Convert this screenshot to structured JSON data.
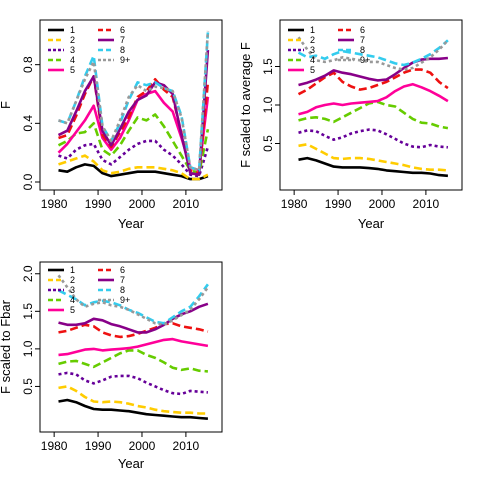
{
  "chart_data": [
    {
      "type": "line",
      "xlabel": "Year",
      "ylabel": "F",
      "xlim": [
        1980,
        2015
      ],
      "ylim": [
        0,
        1.05
      ],
      "xticks": [
        1980,
        1990,
        2000,
        2010
      ],
      "yticks": [
        0.0,
        0.4,
        0.8
      ],
      "ytick_labels": [
        "0.0",
        "0.4",
        "0.8"
      ],
      "legend": "top-left",
      "x": [
        1981,
        1983,
        1985,
        1987,
        1989,
        1991,
        1993,
        1995,
        1997,
        1999,
        2001,
        2003,
        2005,
        2007,
        2009,
        2011,
        2013,
        2015
      ],
      "series": [
        {
          "name": "1",
          "color": "#000000",
          "dash": "",
          "values": [
            0.08,
            0.07,
            0.1,
            0.12,
            0.11,
            0.06,
            0.04,
            0.05,
            0.06,
            0.07,
            0.07,
            0.07,
            0.06,
            0.05,
            0.04,
            0.02,
            0.02,
            0.04
          ]
        },
        {
          "name": "2",
          "color": "#FFCC00",
          "dash": "8,4",
          "values": [
            0.12,
            0.14,
            0.16,
            0.18,
            0.14,
            0.08,
            0.06,
            0.07,
            0.09,
            0.1,
            0.1,
            0.1,
            0.09,
            0.08,
            0.06,
            0.02,
            0.02,
            0.05
          ]
        },
        {
          "name": "3",
          "color": "#660099",
          "dash": "3,3",
          "values": [
            0.18,
            0.16,
            0.22,
            0.25,
            0.26,
            0.15,
            0.12,
            0.17,
            0.22,
            0.26,
            0.28,
            0.28,
            0.22,
            0.18,
            0.12,
            0.05,
            0.04,
            0.24
          ]
        },
        {
          "name": "4",
          "color": "#66CC00",
          "dash": "8,4",
          "values": [
            0.25,
            0.28,
            0.33,
            0.34,
            0.4,
            0.22,
            0.18,
            0.25,
            0.35,
            0.44,
            0.42,
            0.46,
            0.38,
            0.28,
            0.18,
            0.08,
            0.06,
            0.36
          ]
        },
        {
          "name": "5",
          "color": "#FF0099",
          "dash": "",
          "values": [
            0.2,
            0.26,
            0.34,
            0.42,
            0.52,
            0.3,
            0.22,
            0.3,
            0.42,
            0.56,
            0.6,
            0.62,
            0.54,
            0.48,
            0.3,
            0.1,
            0.08,
            0.58
          ]
        },
        {
          "name": "6",
          "color": "#EE1111",
          "dash": "8,4",
          "values": [
            0.3,
            0.32,
            0.45,
            0.6,
            0.72,
            0.32,
            0.24,
            0.34,
            0.44,
            0.58,
            0.62,
            0.7,
            0.63,
            0.58,
            0.33,
            0.08,
            0.06,
            0.68
          ]
        },
        {
          "name": "7",
          "color": "#880088",
          "dash": "",
          "values": [
            0.32,
            0.35,
            0.48,
            0.62,
            0.72,
            0.35,
            0.25,
            0.36,
            0.48,
            0.56,
            0.59,
            0.68,
            0.66,
            0.6,
            0.32,
            0.06,
            0.05,
            0.9
          ]
        },
        {
          "name": "8",
          "color": "#33CCEE",
          "dash": "8,4",
          "values": [
            0.42,
            0.4,
            0.55,
            0.72,
            0.86,
            0.38,
            0.28,
            0.4,
            0.56,
            0.68,
            0.66,
            0.68,
            0.64,
            0.62,
            0.45,
            0.1,
            0.08,
            1.02
          ]
        },
        {
          "name": "9+",
          "color": "#999999",
          "dash": "3,3",
          "values": [
            0.42,
            0.4,
            0.55,
            0.7,
            0.82,
            0.38,
            0.28,
            0.42,
            0.58,
            0.66,
            0.62,
            0.65,
            0.64,
            0.62,
            0.44,
            0.1,
            0.08,
            1.03
          ]
        }
      ]
    },
    {
      "type": "line",
      "xlabel": "Year",
      "ylabel": "F scaled to average F",
      "xlim": [
        1980,
        2015
      ],
      "ylim": [
        0,
        2.0
      ],
      "xticks": [
        1980,
        1990,
        2000,
        2010
      ],
      "yticks": [
        0.5,
        1.0,
        1.5
      ],
      "ytick_labels": [
        "0.5",
        "1.0",
        "1.5"
      ],
      "legend": "top-left",
      "x": [
        1981,
        1983,
        1985,
        1987,
        1989,
        1991,
        1993,
        1995,
        1997,
        1999,
        2001,
        2003,
        2005,
        2007,
        2009,
        2011,
        2013,
        2015
      ],
      "series": [
        {
          "name": "1",
          "color": "#000000",
          "dash": "",
          "values": [
            0.29,
            0.31,
            0.28,
            0.24,
            0.2,
            0.19,
            0.19,
            0.19,
            0.18,
            0.17,
            0.15,
            0.14,
            0.13,
            0.12,
            0.12,
            0.11,
            0.09,
            0.08
          ]
        },
        {
          "name": "2",
          "color": "#FFCC00",
          "dash": "8,4",
          "values": [
            0.47,
            0.49,
            0.43,
            0.37,
            0.31,
            0.3,
            0.31,
            0.31,
            0.3,
            0.28,
            0.26,
            0.24,
            0.22,
            0.19,
            0.17,
            0.16,
            0.16,
            0.15
          ]
        },
        {
          "name": "3",
          "color": "#660099",
          "dash": "3,3",
          "values": [
            0.64,
            0.67,
            0.66,
            0.6,
            0.55,
            0.58,
            0.63,
            0.66,
            0.68,
            0.67,
            0.62,
            0.56,
            0.5,
            0.46,
            0.45,
            0.48,
            0.46,
            0.45
          ]
        },
        {
          "name": "4",
          "color": "#66CC00",
          "dash": "8,4",
          "values": [
            0.8,
            0.83,
            0.84,
            0.82,
            0.78,
            0.84,
            0.9,
            0.96,
            1.02,
            1.04,
            1.0,
            0.98,
            0.9,
            0.82,
            0.77,
            0.76,
            0.72,
            0.7
          ]
        },
        {
          "name": "5",
          "color": "#FF0099",
          "dash": "",
          "values": [
            0.88,
            0.91,
            0.97,
            1.0,
            1.02,
            1.0,
            1.02,
            1.03,
            1.04,
            1.05,
            1.1,
            1.18,
            1.24,
            1.27,
            1.23,
            1.18,
            1.12,
            1.05
          ]
        },
        {
          "name": "6",
          "color": "#EE1111",
          "dash": "8,4",
          "values": [
            1.14,
            1.2,
            1.28,
            1.36,
            1.42,
            1.3,
            1.24,
            1.2,
            1.22,
            1.26,
            1.3,
            1.36,
            1.42,
            1.46,
            1.46,
            1.42,
            1.3,
            1.22
          ]
        },
        {
          "name": "7",
          "color": "#880088",
          "dash": "",
          "values": [
            1.26,
            1.29,
            1.33,
            1.38,
            1.45,
            1.42,
            1.4,
            1.37,
            1.34,
            1.32,
            1.33,
            1.4,
            1.48,
            1.55,
            1.59,
            1.6,
            1.6,
            1.61
          ]
        },
        {
          "name": "8",
          "color": "#33CCEE",
          "dash": "8,4",
          "values": [
            1.68,
            1.62,
            1.64,
            1.6,
            1.66,
            1.7,
            1.68,
            1.66,
            1.64,
            1.62,
            1.58,
            1.54,
            1.52,
            1.55,
            1.6,
            1.66,
            1.74,
            1.84
          ]
        },
        {
          "name": "9+",
          "color": "#999999",
          "dash": "3,3",
          "values": [
            1.88,
            1.72,
            1.58,
            1.56,
            1.58,
            1.62,
            1.6,
            1.58,
            1.56,
            1.56,
            1.52,
            1.48,
            1.46,
            1.48,
            1.55,
            1.62,
            1.72,
            1.84
          ]
        }
      ]
    },
    {
      "type": "line",
      "xlabel": "Year",
      "ylabel": "F scaled to Fbar",
      "xlim": [
        1980,
        2015
      ],
      "ylim": [
        0,
        2.05
      ],
      "xticks": [
        1980,
        1990,
        2000,
        2010
      ],
      "yticks": [
        0.5,
        1.0,
        1.5,
        2.0
      ],
      "ytick_labels": [
        "0.5",
        "1.0",
        "1.5",
        "2.0"
      ],
      "legend": "top-left",
      "x": [
        1981,
        1983,
        1985,
        1987,
        1989,
        1991,
        1993,
        1995,
        1997,
        1999,
        2001,
        2003,
        2005,
        2007,
        2009,
        2011,
        2013,
        2015
      ],
      "series": [
        {
          "name": "1",
          "color": "#000000",
          "dash": "",
          "values": [
            0.3,
            0.32,
            0.29,
            0.24,
            0.2,
            0.19,
            0.19,
            0.18,
            0.17,
            0.15,
            0.13,
            0.12,
            0.11,
            0.1,
            0.09,
            0.09,
            0.08,
            0.07
          ]
        },
        {
          "name": "2",
          "color": "#FFCC00",
          "dash": "8,4",
          "values": [
            0.48,
            0.5,
            0.44,
            0.36,
            0.3,
            0.29,
            0.3,
            0.29,
            0.27,
            0.24,
            0.22,
            0.19,
            0.17,
            0.16,
            0.15,
            0.15,
            0.14,
            0.14
          ]
        },
        {
          "name": "3",
          "color": "#660099",
          "dash": "3,3",
          "values": [
            0.66,
            0.68,
            0.66,
            0.58,
            0.54,
            0.58,
            0.63,
            0.64,
            0.64,
            0.61,
            0.55,
            0.5,
            0.45,
            0.41,
            0.4,
            0.44,
            0.43,
            0.42
          ]
        },
        {
          "name": "4",
          "color": "#66CC00",
          "dash": "8,4",
          "values": [
            0.8,
            0.83,
            0.84,
            0.8,
            0.76,
            0.82,
            0.88,
            0.94,
            0.98,
            0.98,
            0.92,
            0.88,
            0.82,
            0.75,
            0.72,
            0.74,
            0.71,
            0.7
          ]
        },
        {
          "name": "5",
          "color": "#FF0099",
          "dash": "",
          "values": [
            0.92,
            0.93,
            0.96,
            0.99,
            1.0,
            0.98,
            0.99,
            1.0,
            1.01,
            1.03,
            1.06,
            1.09,
            1.12,
            1.13,
            1.1,
            1.08,
            1.06,
            1.04
          ]
        },
        {
          "name": "6",
          "color": "#EE1111",
          "dash": "8,4",
          "values": [
            1.22,
            1.24,
            1.28,
            1.32,
            1.3,
            1.22,
            1.18,
            1.16,
            1.17,
            1.2,
            1.24,
            1.28,
            1.33,
            1.34,
            1.3,
            1.28,
            1.26,
            1.23
          ]
        },
        {
          "name": "7",
          "color": "#880088",
          "dash": "",
          "values": [
            1.35,
            1.32,
            1.32,
            1.34,
            1.4,
            1.38,
            1.33,
            1.3,
            1.26,
            1.22,
            1.22,
            1.26,
            1.32,
            1.4,
            1.46,
            1.5,
            1.56,
            1.6
          ]
        },
        {
          "name": "8",
          "color": "#33CCEE",
          "dash": "8,4",
          "values": [
            1.78,
            1.72,
            1.66,
            1.58,
            1.62,
            1.64,
            1.62,
            1.58,
            1.52,
            1.48,
            1.42,
            1.36,
            1.34,
            1.42,
            1.5,
            1.56,
            1.7,
            1.86
          ]
        },
        {
          "name": "9+",
          "color": "#999999",
          "dash": "3,3",
          "values": [
            1.98,
            1.82,
            1.66,
            1.56,
            1.6,
            1.62,
            1.58,
            1.56,
            1.52,
            1.46,
            1.4,
            1.34,
            1.32,
            1.38,
            1.45,
            1.52,
            1.66,
            1.82
          ]
        }
      ]
    }
  ]
}
